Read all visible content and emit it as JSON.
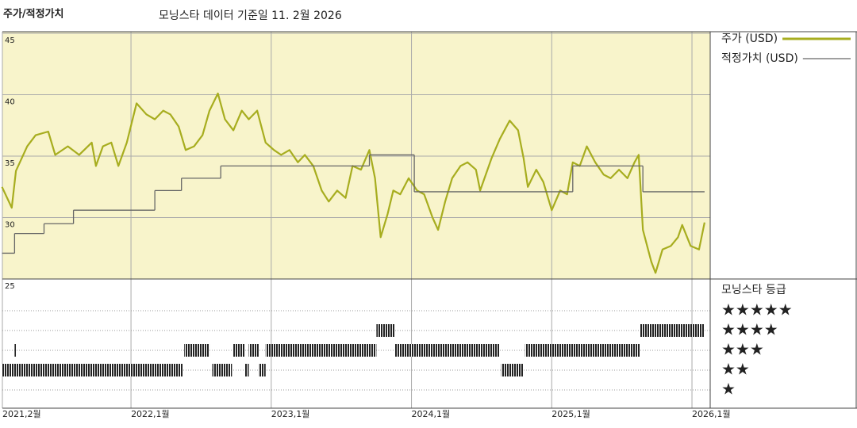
{
  "chart_data": {
    "type": "line",
    "title": "주가/적정가치",
    "subtitle": "모닝스타 데이터 기준일 11. 2월 2026",
    "xlim": [
      2021.083,
      2026.13
    ],
    "xticks": [
      {
        "value": 2021.083,
        "label": "2021,2월"
      },
      {
        "value": 2022,
        "label": "2022,1월"
      },
      {
        "value": 2023,
        "label": "2023,1월"
      },
      {
        "value": 2024,
        "label": "2024,1월"
      },
      {
        "value": 2025,
        "label": "2025,1월"
      },
      {
        "value": 2026,
        "label": "2026,1월"
      }
    ],
    "ylim": [
      25,
      45
    ],
    "yticks": [
      25,
      30,
      35,
      40,
      45
    ],
    "grid": true,
    "series": [
      {
        "name": "주가 (USD)",
        "color": "#a7ad1f",
        "style": "line",
        "x": [
          2021.08,
          2021.15,
          2021.18,
          2021.26,
          2021.32,
          2021.41,
          2021.46,
          2021.55,
          2021.63,
          2021.72,
          2021.75,
          2021.8,
          2021.86,
          2021.91,
          2021.97,
          2022.04,
          2022.11,
          2022.17,
          2022.23,
          2022.28,
          2022.34,
          2022.39,
          2022.45,
          2022.51,
          2022.56,
          2022.62,
          2022.67,
          2022.73,
          2022.79,
          2022.84,
          2022.9,
          2022.96,
          2023.02,
          2023.07,
          2023.13,
          2023.19,
          2023.24,
          2023.3,
          2023.36,
          2023.41,
          2023.47,
          2023.53,
          2023.58,
          2023.64,
          2023.7,
          2023.74,
          2023.78,
          2023.83,
          2023.87,
          2023.92,
          2023.98,
          2024.04,
          2024.09,
          2024.15,
          2024.19,
          2024.24,
          2024.29,
          2024.35,
          2024.4,
          2024.46,
          2024.49,
          2024.53,
          2024.57,
          2024.63,
          2024.7,
          2024.76,
          2024.8,
          2024.83,
          2024.89,
          2024.94,
          2025.0,
          2025.06,
          2025.11,
          2025.15,
          2025.2,
          2025.25,
          2025.31,
          2025.37,
          2025.42,
          2025.48,
          2025.54,
          2025.59,
          2025.62,
          2025.65,
          2025.68,
          2025.71,
          2025.74,
          2025.79,
          2025.85,
          2025.9,
          2025.93,
          2025.99,
          2026.05,
          2026.09
        ],
        "values": [
          32.5,
          30.8,
          33.8,
          35.8,
          36.7,
          37.0,
          35.1,
          35.8,
          35.1,
          36.1,
          34.2,
          35.8,
          36.1,
          34.2,
          36.1,
          39.3,
          38.4,
          38.0,
          38.7,
          38.4,
          37.4,
          35.5,
          35.8,
          36.7,
          38.7,
          40.1,
          38.0,
          37.1,
          38.7,
          38.0,
          38.7,
          36.1,
          35.5,
          35.1,
          35.5,
          34.5,
          35.1,
          34.2,
          32.2,
          31.3,
          32.2,
          31.6,
          34.2,
          33.9,
          35.5,
          33.2,
          28.4,
          30.3,
          32.2,
          31.9,
          33.2,
          32.2,
          31.9,
          30.0,
          29.0,
          31.3,
          33.2,
          34.2,
          34.5,
          33.9,
          32.2,
          33.5,
          34.8,
          36.4,
          37.9,
          37.1,
          34.8,
          32.5,
          33.9,
          32.9,
          30.6,
          32.2,
          31.9,
          34.5,
          34.2,
          35.8,
          34.5,
          33.5,
          33.2,
          33.9,
          33.2,
          34.5,
          35.1,
          29.0,
          27.7,
          26.4,
          25.5,
          27.4,
          27.7,
          28.4,
          29.4,
          27.7,
          27.4,
          29.6
        ]
      },
      {
        "name": "적정가치 (USD)",
        "color": "#666666",
        "style": "step",
        "x": [
          2021.08,
          2021.17,
          2021.38,
          2021.59,
          2022.17,
          2022.36,
          2022.64,
          2023.7,
          2024.02,
          2025.15,
          2025.65,
          2026.09
        ],
        "values": [
          27.1,
          28.7,
          29.5,
          30.6,
          32.2,
          33.2,
          34.2,
          35.1,
          32.1,
          34.2,
          32.1,
          32.1
        ]
      }
    ],
    "ratings": {
      "title": "모닝스타 등급",
      "labels": [
        "★★★★★",
        "★★★★",
        "★★★",
        "★★",
        "★"
      ],
      "levels": [
        5,
        4,
        3,
        2,
        1
      ],
      "periods": [
        {
          "stars": 4,
          "start": 2023.75,
          "end": 2023.88
        },
        {
          "stars": 4,
          "start": 2025.63,
          "end": 2026.09
        },
        {
          "stars": 3,
          "start": 2021.17,
          "end": 2021.18
        },
        {
          "stars": 3,
          "start": 2022.38,
          "end": 2022.56
        },
        {
          "stars": 3,
          "start": 2022.73,
          "end": 2022.81
        },
        {
          "stars": 3,
          "start": 2022.84,
          "end": 2022.91
        },
        {
          "stars": 3,
          "start": 2022.96,
          "end": 2023.75
        },
        {
          "stars": 3,
          "start": 2023.88,
          "end": 2024.63
        },
        {
          "stars": 3,
          "start": 2024.81,
          "end": 2025.63
        },
        {
          "stars": 2,
          "start": 2021.08,
          "end": 2022.37
        },
        {
          "stars": 2,
          "start": 2022.58,
          "end": 2022.72
        },
        {
          "stars": 2,
          "start": 2022.81,
          "end": 2022.84
        },
        {
          "stars": 2,
          "start": 2022.91,
          "end": 2022.96
        },
        {
          "stars": 2,
          "start": 2024.64,
          "end": 2024.8
        }
      ]
    }
  }
}
